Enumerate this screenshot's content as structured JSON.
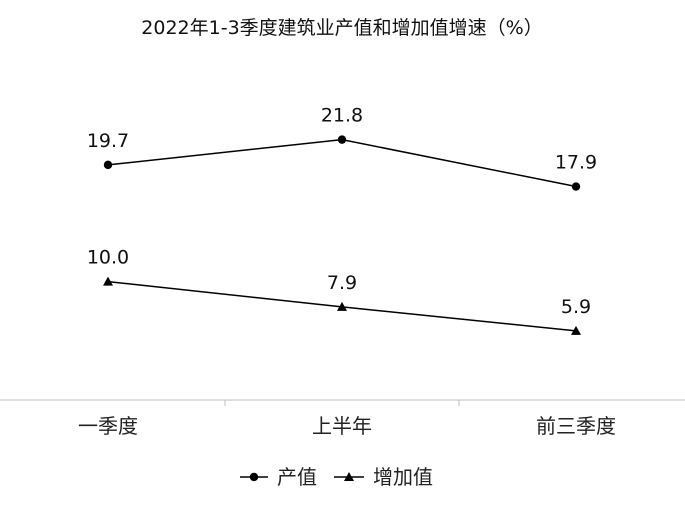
{
  "chart_data": {
    "type": "line",
    "title": "2022年1-3季度建筑业产值和增加值增速（%）",
    "categories": [
      "一季度",
      "上半年",
      "前三季度"
    ],
    "series": [
      {
        "name": "产值",
        "values": [
          19.7,
          21.8,
          17.9
        ],
        "marker": "circle",
        "labels": [
          "19.7",
          "21.8",
          "17.9"
        ]
      },
      {
        "name": "增加值",
        "values": [
          10.0,
          7.9,
          5.9
        ],
        "marker": "triangle",
        "labels": [
          "10.0",
          "7.9",
          "5.9"
        ]
      }
    ],
    "ylim": [
      0,
      25
    ],
    "grid": false,
    "legend": "bottom",
    "colors": {
      "line": "#000000",
      "axis": "#bfbfbf"
    }
  }
}
